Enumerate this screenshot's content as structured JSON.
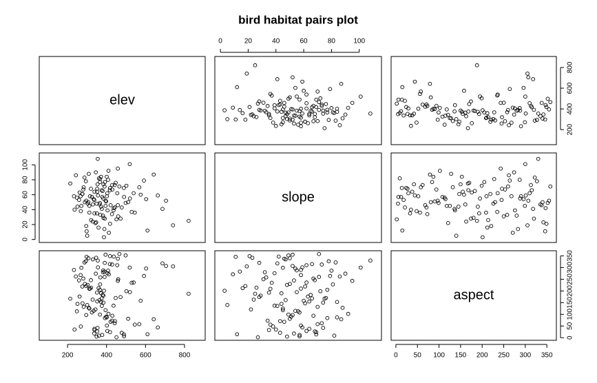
{
  "chart_data": {
    "type": "pairs",
    "title": "bird habitat pairs plot",
    "point_color": "#000000",
    "variables": [
      {
        "name": "elev",
        "lim": [
          55,
          906
        ],
        "ticks": [
          200,
          400,
          600,
          800
        ],
        "values": [
          312,
          455,
          268,
          390,
          520,
          347,
          401,
          289,
          610,
          375,
          233,
          428,
          366,
          498,
          301,
          352,
          687,
          410,
          259,
          384,
          442,
          330,
          575,
          296,
          361,
          405,
          248,
          519,
          372,
          338,
          460,
          283,
          395,
          642,
          321,
          356,
          478,
          214,
          389,
          430,
          307,
          545,
          367,
          277,
          412,
          349,
          502,
          391,
          325,
          458,
          236,
          380,
          603,
          343,
          294,
          421,
          368,
          489,
          315,
          372,
          741,
          398,
          262,
          437,
          354,
          529,
          309,
          383,
          451,
          276,
          364,
          592,
          338,
          417,
          296,
          387,
          466,
          251,
          402,
          345,
          821,
          378,
          320,
          436,
          287,
          511,
          359,
          404,
          271,
          447,
          334,
          382,
          568,
          303,
          418,
          352,
          490,
          243,
          376,
          429,
          312,
          663,
          355,
          395,
          281,
          472,
          337,
          408,
          366,
          539,
          298,
          384,
          443,
          267,
          351,
          418,
          705,
          329,
          392,
          458
        ]
      },
      {
        "name": "slope",
        "lim": [
          -4,
          116
        ],
        "ticks": [
          0,
          20,
          40,
          60,
          80,
          100
        ],
        "values": [
          45,
          62,
          38,
          71,
          55,
          23,
          84,
          50,
          12,
          66,
          58,
          34,
          77,
          49,
          5,
          68,
          41,
          92,
          53,
          29,
          73,
          47,
          60,
          18,
          82,
          39,
          56,
          101,
          44,
          64,
          31,
          70,
          52,
          87,
          26,
          59,
          43,
          75,
          14,
          67,
          50,
          36,
          81,
          61,
          9,
          48,
          72,
          28,
          57,
          95,
          40,
          65,
          54,
          22,
          78,
          46,
          33,
          69,
          58,
          84,
          19,
          51,
          63,
          42,
          74,
          37,
          88,
          55,
          27,
          61,
          47,
          79,
          35,
          66,
          52,
          3,
          71,
          44,
          58,
          90,
          25,
          57,
          68,
          39,
          83,
          50,
          16,
          62,
          45,
          76,
          54,
          32,
          70,
          48,
          21,
          64,
          57,
          86,
          41,
          73,
          36,
          59,
          108,
          45,
          67,
          28,
          53,
          80,
          49,
          62,
          11,
          74,
          43,
          58,
          35,
          69,
          52,
          24,
          77,
          46
        ]
      },
      {
        "name": "aspect",
        "lim": [
          -11,
          372
        ],
        "ticks": [
          0,
          50,
          100,
          150,
          200,
          250,
          300,
          350
        ],
        "values": [
          125,
          310,
          48,
          260,
          195,
          342,
          87,
          230,
          15,
          168,
          290,
          73,
          205,
          352,
          140,
          27,
          318,
          102,
          245,
          180,
          62,
          335,
          158,
          221,
          9,
          276,
          113,
          300,
          190,
          38,
          250,
          132,
          355,
          79,
          214,
          301,
          21,
          167,
          283,
          94,
          340,
          56,
          228,
          147,
          271,
          5,
          199,
          320,
          108,
          243,
          35,
          183,
          296,
          121,
          327,
          68,
          258,
          14,
          210,
          153,
          305,
          90,
          176,
          347,
          42,
          235,
          128,
          288,
          2,
          219,
          161,
          264,
          33,
          315,
          97,
          201,
          358,
          145,
          52,
          274,
          188,
          12,
          246,
          137,
          322,
          81,
          212,
          29,
          299,
          170,
          115,
          280,
          58,
          226,
          349,
          155,
          6,
          262,
          136,
          313,
          209,
          44,
          330,
          118,
          253,
          174,
          18,
          287,
          99,
          236,
          346,
          150,
          71,
          268,
          193,
          24,
          307,
          163,
          84,
          338
        ]
      }
    ]
  }
}
